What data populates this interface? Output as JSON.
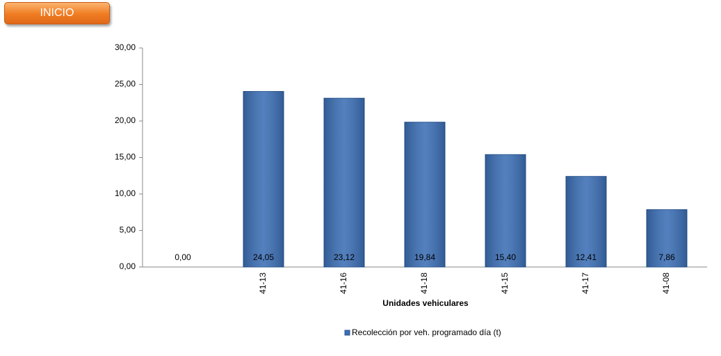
{
  "button": {
    "label": "INICIO"
  },
  "chart_data": {
    "type": "bar",
    "x_label": "Unidades vehiculares",
    "categories": [
      null,
      "41-13",
      "41-16",
      "41-18",
      "41-15",
      "41-17",
      "41-08"
    ],
    "series": [
      {
        "name": "Recolección por veh. programado día (t)",
        "color": "#3c6fb5",
        "values": [
          0,
          24.05,
          23.12,
          19.84,
          15.4,
          12.41,
          7.86
        ],
        "value_labels": [
          "0,00",
          "24,05",
          "23,12",
          "19,84",
          "15,40",
          "12,41",
          "7,86"
        ]
      }
    ],
    "ylim": [
      0,
      30
    ],
    "yticks": [
      {
        "value": 0,
        "label": "0,00"
      },
      {
        "value": 5,
        "label": "5,00"
      },
      {
        "value": 10,
        "label": "10,00"
      },
      {
        "value": 15,
        "label": "15,00"
      },
      {
        "value": 20,
        "label": "20,00"
      },
      {
        "value": 25,
        "label": "25,00"
      },
      {
        "value": 30,
        "label": "30,00"
      }
    ],
    "legend": "bottom"
  }
}
